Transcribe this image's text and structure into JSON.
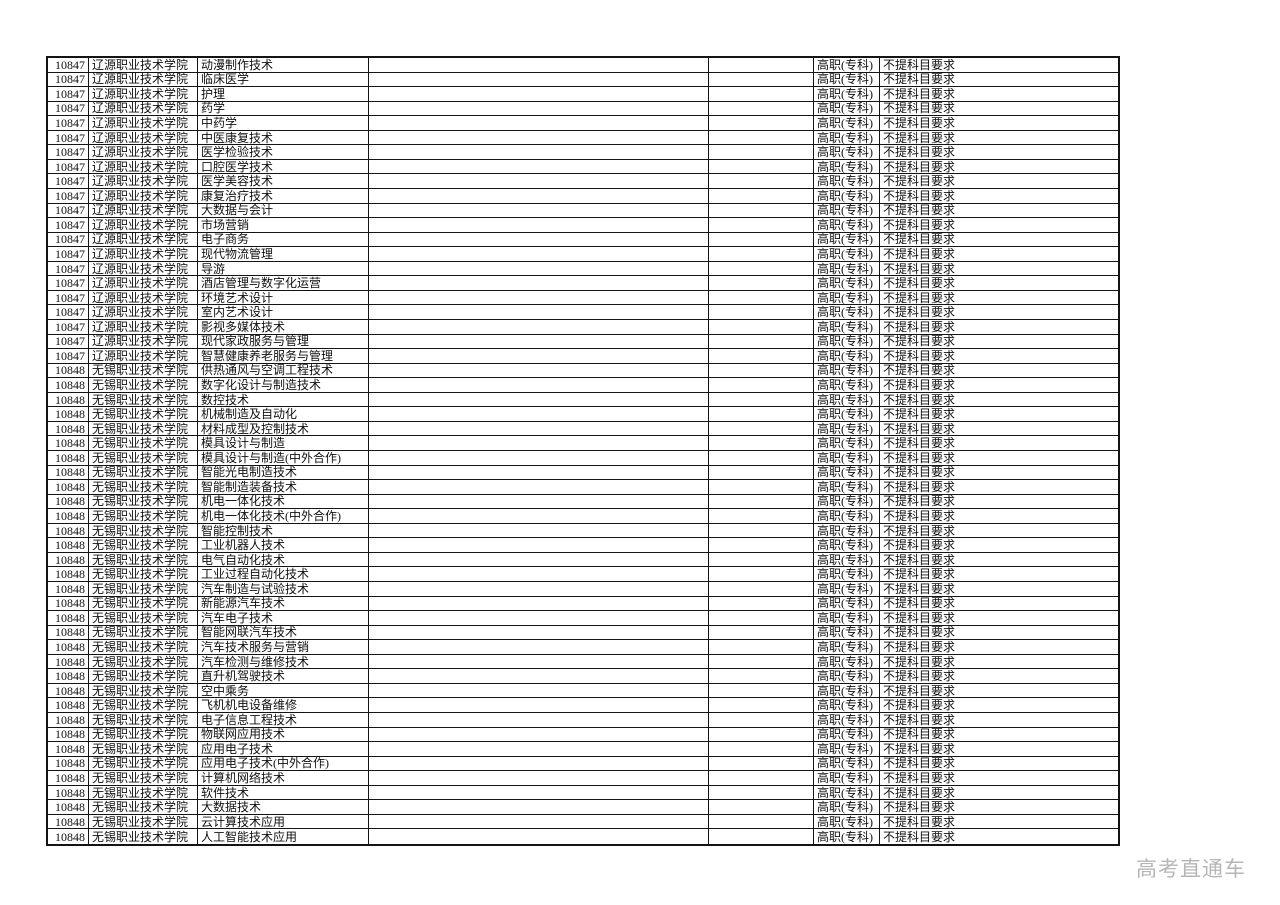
{
  "page": {
    "background_color": "#ffffff",
    "border_color": "#141414",
    "text_color": "#101010"
  },
  "table": {
    "level_label": "高职(专科)",
    "requirement_label": "不提科目要求",
    "groups": [
      {
        "code": "10847",
        "college": "辽源职业技术学院",
        "majors": [
          "动漫制作技术",
          "临床医学",
          "护理",
          "药学",
          "中药学",
          "中医康复技术",
          "医学检验技术",
          "口腔医学技术",
          "医学美容技术",
          "康复治疗技术",
          "大数据与会计",
          "市场营销",
          "电子商务",
          "现代物流管理",
          "导游",
          "酒店管理与数字化运营",
          "环境艺术设计",
          "室内艺术设计",
          "影视多媒体技术",
          "现代家政服务与管理",
          "智慧健康养老服务与管理"
        ]
      },
      {
        "code": "10848",
        "college": "无锡职业技术学院",
        "majors": [
          "供热通风与空调工程技术",
          "数字化设计与制造技术",
          "数控技术",
          "机械制造及自动化",
          "材料成型及控制技术",
          "模具设计与制造",
          "模具设计与制造(中外合作)",
          "智能光电制造技术",
          "智能制造装备技术",
          "机电一体化技术",
          "机电一体化技术(中外合作)",
          "智能控制技术",
          "工业机器人技术",
          "电气自动化技术",
          "工业过程自动化技术",
          "汽车制造与试验技术",
          "新能源汽车技术",
          "汽车电子技术",
          "智能网联汽车技术",
          "汽车技术服务与营销",
          "汽车检测与维修技术",
          "直升机驾驶技术",
          "空中乘务",
          "飞机机电设备维修",
          "电子信息工程技术",
          "物联网应用技术",
          "应用电子技术",
          "应用电子技术(中外合作)",
          "计算机网络技术",
          "软件技术",
          "大数据技术",
          "云计算技术应用",
          "人工智能技术应用"
        ]
      }
    ]
  },
  "watermark": {
    "text": "高考直通车",
    "color": "#b6b6b6"
  }
}
